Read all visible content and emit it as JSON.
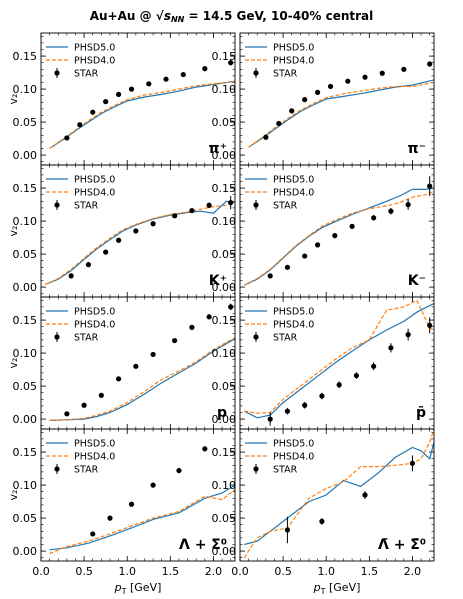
{
  "figure": {
    "title_prefix": "Au+Au @ ",
    "title_sqrt": "√",
    "title_s": "s",
    "title_sub": "NN",
    "title_suffix": " = 14.5 GeV, 10-40% central"
  },
  "colors": {
    "phsd5": "#1f77b4",
    "phsd4": "#ff7f0e",
    "star": "#000000"
  },
  "chart_data": [
    {
      "type": "line",
      "panel_label": "π⁺",
      "ylabel": "v₂",
      "xlabel": "",
      "xlim": [
        0,
        2.25
      ],
      "ylim": [
        -0.015,
        0.185
      ],
      "yticks": [
        "0.00",
        "0.05",
        "0.10",
        "0.15"
      ],
      "xticks": [
        "0.0",
        "0.5",
        "1.0",
        "1.5",
        "2.0"
      ],
      "legend": [
        "PHSD5.0",
        "PHSD4.0",
        "STAR"
      ],
      "legend_loc": "upper left",
      "series": [
        {
          "name": "PHSD5.0",
          "style": "solid",
          "x": [
            0.1,
            0.25,
            0.4,
            0.55,
            0.7,
            0.85,
            1.0,
            1.2,
            1.4,
            1.6,
            1.8,
            2.0,
            2.25
          ],
          "y": [
            0.01,
            0.023,
            0.037,
            0.05,
            0.063,
            0.073,
            0.082,
            0.088,
            0.092,
            0.097,
            0.103,
            0.107,
            0.112
          ]
        },
        {
          "name": "PHSD4.0",
          "style": "dashed",
          "x": [
            0.1,
            0.25,
            0.4,
            0.55,
            0.7,
            0.85,
            1.0,
            1.2,
            1.4,
            1.6,
            1.8,
            2.0,
            2.25
          ],
          "y": [
            0.01,
            0.024,
            0.038,
            0.052,
            0.065,
            0.075,
            0.084,
            0.091,
            0.095,
            0.1,
            0.105,
            0.108,
            0.111
          ]
        },
        {
          "name": "STAR",
          "style": "points",
          "x": [
            0.3,
            0.45,
            0.6,
            0.75,
            0.9,
            1.05,
            1.25,
            1.45,
            1.65,
            1.9,
            2.2
          ],
          "y": [
            0.026,
            0.046,
            0.065,
            0.081,
            0.092,
            0.1,
            0.108,
            0.115,
            0.122,
            0.131,
            0.14
          ],
          "err": [
            0.002,
            0.002,
            0.002,
            0.002,
            0.002,
            0.002,
            0.002,
            0.002,
            0.003,
            0.003,
            0.004
          ]
        }
      ]
    },
    {
      "type": "line",
      "panel_label": "π⁻",
      "ylabel": "",
      "xlabel": "",
      "xlim": [
        0,
        2.25
      ],
      "ylim": [
        -0.015,
        0.185
      ],
      "yticks": [
        "0.00",
        "0.05",
        "0.10",
        "0.15"
      ],
      "xticks": [
        "0.0",
        "0.5",
        "1.0",
        "1.5",
        "2.0"
      ],
      "legend": [
        "PHSD5.0",
        "PHSD4.0",
        "STAR"
      ],
      "legend_loc": "upper left",
      "series": [
        {
          "name": "PHSD5.0",
          "style": "solid",
          "x": [
            0.1,
            0.25,
            0.4,
            0.55,
            0.7,
            0.85,
            1.0,
            1.2,
            1.4,
            1.6,
            1.8,
            2.0,
            2.25
          ],
          "y": [
            0.012,
            0.025,
            0.039,
            0.053,
            0.066,
            0.076,
            0.085,
            0.089,
            0.093,
            0.098,
            0.103,
            0.106,
            0.114
          ]
        },
        {
          "name": "PHSD4.0",
          "style": "dashed",
          "x": [
            0.1,
            0.25,
            0.4,
            0.55,
            0.7,
            0.85,
            1.0,
            1.2,
            1.4,
            1.6,
            1.8,
            2.0,
            2.25
          ],
          "y": [
            0.012,
            0.026,
            0.041,
            0.055,
            0.068,
            0.078,
            0.087,
            0.093,
            0.097,
            0.101,
            0.104,
            0.104,
            0.11
          ]
        },
        {
          "name": "STAR",
          "style": "points",
          "x": [
            0.3,
            0.45,
            0.6,
            0.75,
            0.9,
            1.05,
            1.25,
            1.45,
            1.65,
            1.9,
            2.2
          ],
          "y": [
            0.027,
            0.048,
            0.067,
            0.084,
            0.095,
            0.104,
            0.112,
            0.118,
            0.124,
            0.13,
            0.138
          ],
          "err": [
            0.002,
            0.002,
            0.002,
            0.002,
            0.002,
            0.002,
            0.002,
            0.002,
            0.003,
            0.003,
            0.004
          ]
        }
      ]
    },
    {
      "type": "line",
      "panel_label": "K⁺",
      "ylabel": "v₂",
      "xlabel": "",
      "xlim": [
        0,
        2.25
      ],
      "ylim": [
        -0.015,
        0.185
      ],
      "yticks": [
        "0.00",
        "0.05",
        "0.10",
        "0.15"
      ],
      "xticks": [
        "0.0",
        "0.5",
        "1.0",
        "1.5",
        "2.0"
      ],
      "legend": [
        "PHSD5.0",
        "PHSD4.0",
        "STAR"
      ],
      "legend_loc": "upper left",
      "series": [
        {
          "name": "PHSD5.0",
          "style": "solid",
          "x": [
            0.05,
            0.2,
            0.35,
            0.5,
            0.65,
            0.8,
            0.95,
            1.1,
            1.3,
            1.5,
            1.7,
            1.85,
            2.0,
            2.15,
            2.25
          ],
          "y": [
            0.004,
            0.012,
            0.025,
            0.042,
            0.058,
            0.072,
            0.085,
            0.094,
            0.103,
            0.109,
            0.113,
            0.115,
            0.112,
            0.13,
            0.128
          ]
        },
        {
          "name": "PHSD4.0",
          "style": "dashed",
          "x": [
            0.05,
            0.2,
            0.35,
            0.5,
            0.65,
            0.8,
            0.95,
            1.1,
            1.3,
            1.5,
            1.7,
            1.85,
            2.0,
            2.15,
            2.25
          ],
          "y": [
            0.004,
            0.013,
            0.027,
            0.044,
            0.06,
            0.074,
            0.087,
            0.095,
            0.104,
            0.11,
            0.114,
            0.118,
            0.122,
            0.124,
            0.13
          ]
        },
        {
          "name": "STAR",
          "style": "points",
          "x": [
            0.35,
            0.55,
            0.75,
            0.9,
            1.1,
            1.3,
            1.55,
            1.75,
            1.95,
            2.2
          ],
          "y": [
            0.017,
            0.034,
            0.053,
            0.071,
            0.085,
            0.096,
            0.108,
            0.116,
            0.124,
            0.128
          ],
          "err": [
            0.002,
            0.002,
            0.002,
            0.002,
            0.002,
            0.002,
            0.003,
            0.003,
            0.004,
            0.01
          ]
        }
      ]
    },
    {
      "type": "line",
      "panel_label": "K⁻",
      "ylabel": "",
      "xlabel": "",
      "xlim": [
        0,
        2.25
      ],
      "ylim": [
        -0.015,
        0.185
      ],
      "yticks": [
        "0.00",
        "0.05",
        "0.10",
        "0.15"
      ],
      "xticks": [
        "0.0",
        "0.5",
        "1.0",
        "1.5",
        "2.0"
      ],
      "legend": [
        "PHSD5.0",
        "PHSD4.0",
        "STAR"
      ],
      "legend_loc": "upper left",
      "series": [
        {
          "name": "PHSD5.0",
          "style": "solid",
          "x": [
            0.05,
            0.2,
            0.35,
            0.5,
            0.65,
            0.8,
            0.95,
            1.1,
            1.3,
            1.5,
            1.7,
            1.85,
            2.0,
            2.15,
            2.25
          ],
          "y": [
            0.003,
            0.012,
            0.026,
            0.044,
            0.062,
            0.077,
            0.09,
            0.099,
            0.11,
            0.12,
            0.13,
            0.138,
            0.148,
            0.148,
            0.15
          ]
        },
        {
          "name": "PHSD4.0",
          "style": "dashed",
          "x": [
            0.05,
            0.2,
            0.35,
            0.5,
            0.65,
            0.8,
            0.95,
            1.1,
            1.3,
            1.5,
            1.7,
            1.85,
            2.0,
            2.15,
            2.25
          ],
          "y": [
            0.003,
            0.013,
            0.027,
            0.045,
            0.063,
            0.078,
            0.092,
            0.101,
            0.112,
            0.119,
            0.123,
            0.128,
            0.136,
            0.14,
            0.145
          ]
        },
        {
          "name": "STAR",
          "style": "points",
          "x": [
            0.35,
            0.55,
            0.75,
            0.9,
            1.1,
            1.3,
            1.55,
            1.75,
            1.95,
            2.2
          ],
          "y": [
            0.017,
            0.03,
            0.047,
            0.064,
            0.078,
            0.092,
            0.105,
            0.115,
            0.125,
            0.153
          ],
          "err": [
            0.002,
            0.002,
            0.002,
            0.002,
            0.003,
            0.003,
            0.004,
            0.005,
            0.008,
            0.015
          ]
        }
      ]
    },
    {
      "type": "line",
      "panel_label": "p",
      "ylabel": "v₂",
      "xlabel": "",
      "xlim": [
        0,
        2.25
      ],
      "ylim": [
        -0.015,
        0.185
      ],
      "yticks": [
        "0.00",
        "0.05",
        "0.10",
        "0.15"
      ],
      "xticks": [
        "0.0",
        "0.5",
        "1.0",
        "1.5",
        "2.0"
      ],
      "legend": [
        "PHSD5.0",
        "PHSD4.0",
        "STAR"
      ],
      "legend_loc": "upper left",
      "series": [
        {
          "name": "PHSD5.0",
          "style": "solid",
          "x": [
            0.1,
            0.3,
            0.5,
            0.65,
            0.8,
            1.0,
            1.2,
            1.4,
            1.6,
            1.8,
            2.0,
            2.2,
            2.25
          ],
          "y": [
            -0.002,
            -0.001,
            0.0,
            0.004,
            0.01,
            0.022,
            0.038,
            0.055,
            0.07,
            0.085,
            0.103,
            0.118,
            0.122
          ]
        },
        {
          "name": "PHSD4.0",
          "style": "dashed",
          "x": [
            0.1,
            0.3,
            0.5,
            0.65,
            0.8,
            1.0,
            1.2,
            1.4,
            1.6,
            1.8,
            2.0,
            2.2,
            2.25
          ],
          "y": [
            -0.002,
            -0.001,
            0.001,
            0.006,
            0.012,
            0.025,
            0.042,
            0.06,
            0.073,
            0.087,
            0.105,
            0.12,
            0.123
          ]
        },
        {
          "name": "STAR",
          "style": "points",
          "x": [
            0.3,
            0.5,
            0.7,
            0.9,
            1.1,
            1.3,
            1.55,
            1.75,
            1.95,
            2.2
          ],
          "y": [
            0.008,
            0.021,
            0.036,
            0.061,
            0.08,
            0.098,
            0.119,
            0.139,
            0.155,
            0.17
          ],
          "err": [
            0.002,
            0.002,
            0.002,
            0.002,
            0.002,
            0.003,
            0.003,
            0.003,
            0.004,
            0.005
          ]
        }
      ]
    },
    {
      "type": "line",
      "panel_label": "p̄",
      "ylabel": "",
      "xlabel": "",
      "xlim": [
        0,
        2.25
      ],
      "ylim": [
        -0.015,
        0.185
      ],
      "yticks": [
        "0.00",
        "0.05",
        "0.10",
        "0.15"
      ],
      "xticks": [
        "0.0",
        "0.5",
        "1.0",
        "1.5",
        "2.0"
      ],
      "legend": [
        "PHSD5.0",
        "PHSD4.0",
        "STAR"
      ],
      "legend_loc": "upper left",
      "series": [
        {
          "name": "PHSD5.0",
          "style": "solid",
          "x": [
            0.05,
            0.2,
            0.35,
            0.5,
            0.7,
            0.9,
            1.1,
            1.3,
            1.5,
            1.7,
            1.9,
            2.05,
            2.2,
            2.25
          ],
          "y": [
            0.012,
            0.002,
            0.006,
            0.025,
            0.045,
            0.065,
            0.085,
            0.103,
            0.12,
            0.135,
            0.148,
            0.162,
            0.172,
            0.175
          ]
        },
        {
          "name": "PHSD4.0",
          "style": "dashed",
          "x": [
            0.05,
            0.2,
            0.35,
            0.5,
            0.7,
            0.9,
            1.1,
            1.3,
            1.5,
            1.7,
            1.9,
            2.05,
            2.2,
            2.25
          ],
          "y": [
            0.012,
            0.009,
            0.01,
            0.03,
            0.05,
            0.07,
            0.09,
            0.108,
            0.12,
            0.165,
            0.17,
            0.18,
            0.138,
            0.135
          ]
        },
        {
          "name": "STAR",
          "style": "points",
          "x": [
            0.35,
            0.55,
            0.75,
            0.95,
            1.15,
            1.35,
            1.55,
            1.75,
            1.95,
            2.2
          ],
          "y": [
            0.0,
            0.012,
            0.021,
            0.035,
            0.052,
            0.066,
            0.08,
            0.108,
            0.128,
            0.142
          ],
          "err": [
            0.01,
            0.005,
            0.005,
            0.005,
            0.005,
            0.005,
            0.006,
            0.007,
            0.009,
            0.012
          ]
        }
      ]
    },
    {
      "type": "line",
      "panel_label": "Λ + Σ⁰",
      "ylabel": "v₂",
      "xlabel": "p_T [GeV]",
      "xlim": [
        0,
        2.25
      ],
      "ylim": [
        -0.015,
        0.185
      ],
      "yticks": [
        "0.00",
        "0.05",
        "0.10",
        "0.15"
      ],
      "xticks": [
        "0.0",
        "0.5",
        "1.0",
        "1.5",
        "2.0"
      ],
      "legend": [
        "PHSD5.0",
        "PHSD4.0",
        "STAR"
      ],
      "legend_loc": "upper left",
      "series": [
        {
          "name": "PHSD5.0",
          "style": "solid",
          "x": [
            0.1,
            0.3,
            0.55,
            0.8,
            1.05,
            1.3,
            1.6,
            1.9,
            2.1,
            2.25
          ],
          "y": [
            0.002,
            0.005,
            0.012,
            0.023,
            0.035,
            0.048,
            0.058,
            0.08,
            0.088,
            0.1
          ]
        },
        {
          "name": "PHSD4.0",
          "style": "dashed",
          "x": [
            0.1,
            0.3,
            0.55,
            0.8,
            1.05,
            1.3,
            1.6,
            1.9,
            2.1,
            2.25
          ],
          "y": [
            -0.004,
            0.007,
            0.015,
            0.026,
            0.038,
            0.05,
            0.06,
            0.083,
            0.078,
            0.093
          ]
        },
        {
          "name": "STAR",
          "style": "points",
          "x": [
            0.6,
            0.8,
            1.05,
            1.3,
            1.6,
            1.9
          ],
          "y": [
            0.026,
            0.05,
            0.071,
            0.1,
            0.122,
            0.155
          ],
          "err": [
            0.003,
            0.003,
            0.003,
            0.003,
            0.004,
            0.004
          ]
        }
      ]
    },
    {
      "type": "line",
      "panel_label": "Λ̄ + Σ̄⁰",
      "ylabel": "",
      "xlabel": "p_T [GeV]",
      "xlim": [
        0,
        2.25
      ],
      "ylim": [
        -0.015,
        0.185
      ],
      "yticks": [
        "0.00",
        "0.05",
        "0.10",
        "0.15"
      ],
      "xticks": [
        "0.0",
        "0.5",
        "1.0",
        "1.5",
        "2.0"
      ],
      "legend": [
        "PHSD5.0",
        "PHSD4.0",
        "STAR"
      ],
      "legend_loc": "upper left",
      "series": [
        {
          "name": "PHSD5.0",
          "style": "solid",
          "x": [
            0.05,
            0.2,
            0.35,
            0.55,
            0.8,
            1.0,
            1.2,
            1.4,
            1.6,
            1.8,
            2.0,
            2.1,
            2.2,
            2.25
          ],
          "y": [
            0.01,
            0.015,
            0.03,
            0.05,
            0.075,
            0.085,
            0.107,
            0.098,
            0.118,
            0.142,
            0.157,
            0.152,
            0.14,
            0.165
          ]
        },
        {
          "name": "PHSD4.0",
          "style": "dashed",
          "x": [
            0.05,
            0.2,
            0.35,
            0.55,
            0.8,
            1.0,
            1.2,
            1.4,
            1.6,
            1.8,
            2.0,
            2.1,
            2.2,
            2.25
          ],
          "y": [
            -0.01,
            0.02,
            0.03,
            0.035,
            0.08,
            0.095,
            0.105,
            0.128,
            0.128,
            0.13,
            0.133,
            0.14,
            0.165,
            0.185
          ]
        },
        {
          "name": "STAR",
          "style": "points",
          "x": [
            0.55,
            0.95,
            1.45,
            2.0
          ],
          "y": [
            0.032,
            0.045,
            0.085,
            0.133
          ],
          "err": [
            0.02,
            0.005,
            0.006,
            0.012
          ]
        }
      ]
    }
  ]
}
